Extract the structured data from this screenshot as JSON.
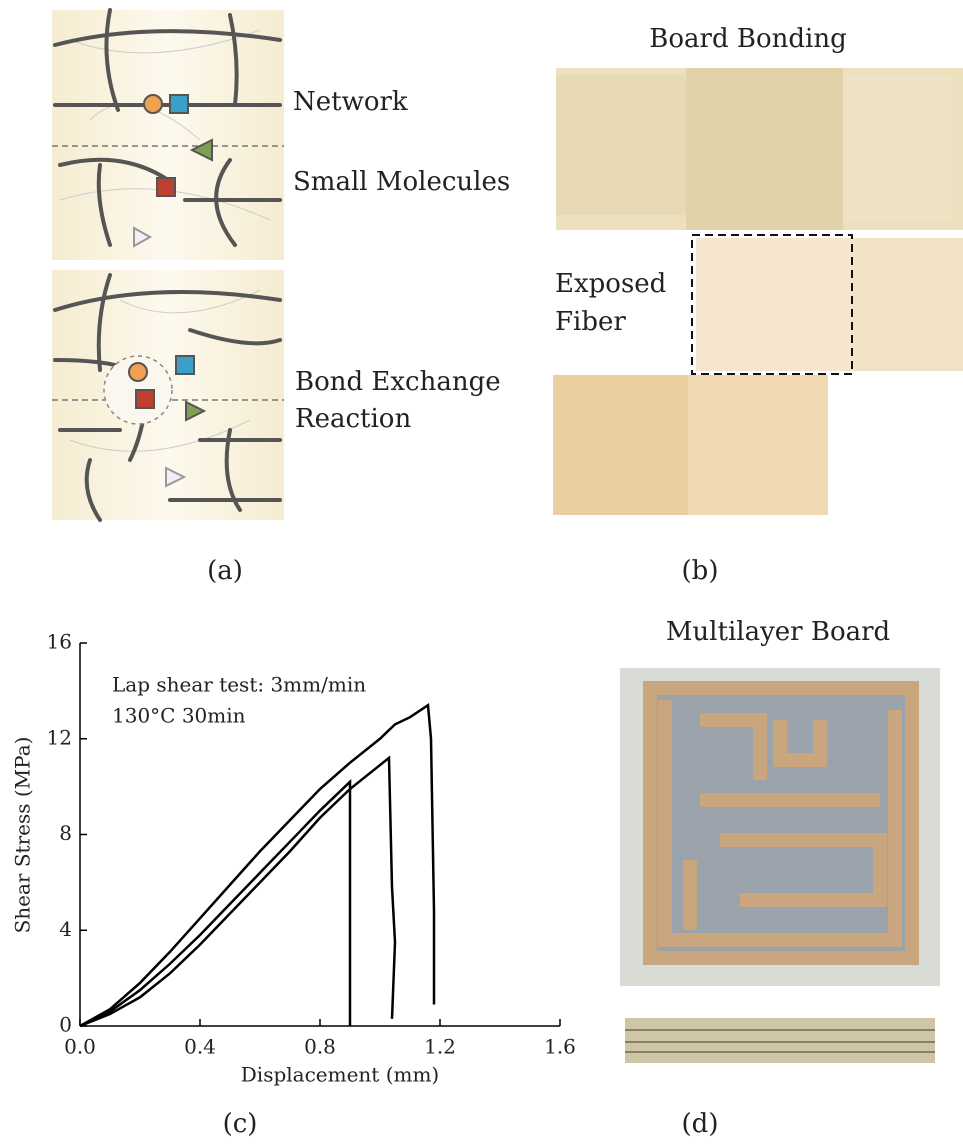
{
  "panel_a": {
    "labels": [
      "Network",
      "Small Molecules"
    ],
    "reaction_lines": [
      "Bond Exchange",
      "Reaction"
    ],
    "caption": "(a)"
  },
  "panel_b": {
    "title": "Board Bonding",
    "fiber_lines": [
      "Exposed",
      "Fiber"
    ],
    "caption": "(b)"
  },
  "chart_data": {
    "type": "line",
    "caption": "(c)",
    "xlabel": "Displacement (mm)",
    "ylabel": "Shear Stress (MPa)",
    "annotations": [
      "Lap shear test: 3mm/min",
      "130°C 30min"
    ],
    "xlim": [
      0,
      1.6
    ],
    "ylim": [
      0,
      16
    ],
    "xticks": [
      {
        "value": 0,
        "label": "0.0"
      },
      0.4,
      0.8,
      1.2,
      1.6
    ],
    "yticks": [
      0,
      4,
      8,
      12,
      16
    ],
    "grid": false,
    "series": [
      {
        "color": "#000000",
        "x": [
          0,
          0.1,
          0.2,
          0.3,
          0.4,
          0.5,
          0.6,
          0.7,
          0.8,
          0.9,
          1.0,
          1.05,
          1.1,
          1.16,
          1.17,
          1.18,
          1.18
        ],
        "values": [
          0,
          0.7,
          1.8,
          3.1,
          4.5,
          5.9,
          7.3,
          8.6,
          9.9,
          11.0,
          12.0,
          12.6,
          12.9,
          13.4,
          12.0,
          4.8,
          0.9
        ]
      },
      {
        "color": "#000000",
        "x": [
          0,
          0.1,
          0.2,
          0.3,
          0.4,
          0.5,
          0.6,
          0.7,
          0.8,
          0.9,
          1.0,
          1.03,
          1.04,
          1.05,
          1.04
        ],
        "values": [
          0,
          0.5,
          1.2,
          2.2,
          3.4,
          4.7,
          6.0,
          7.3,
          8.7,
          9.9,
          10.9,
          11.2,
          5.8,
          3.5,
          0.3
        ]
      },
      {
        "color": "#000000",
        "x": [
          0,
          0.1,
          0.2,
          0.3,
          0.4,
          0.5,
          0.6,
          0.7,
          0.8,
          0.9,
          0.9
        ],
        "values": [
          0,
          0.6,
          1.5,
          2.6,
          3.8,
          5.1,
          6.4,
          7.7,
          9.0,
          10.2,
          0
        ]
      }
    ]
  },
  "panel_d": {
    "title": "Multilayer Board",
    "caption": "(d)"
  }
}
